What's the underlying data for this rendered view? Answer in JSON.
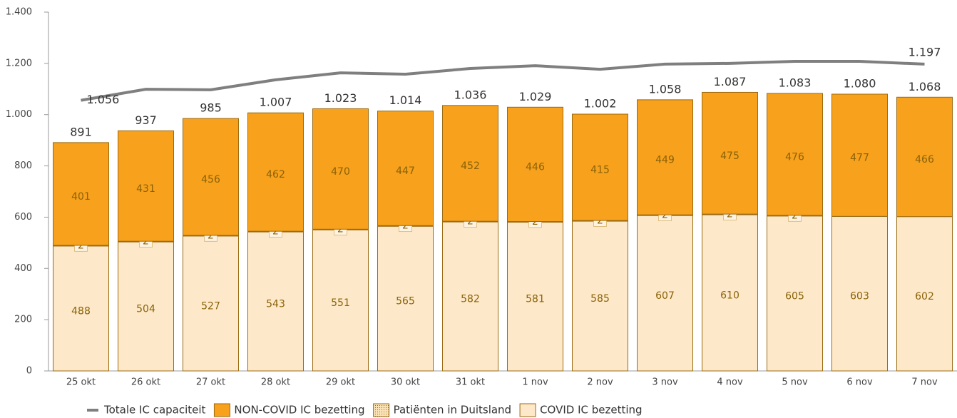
{
  "chart_data": {
    "type": "stacked-bar-line",
    "categories": [
      "25 okt",
      "26 okt",
      "27 okt",
      "28 okt",
      "29 okt",
      "30 okt",
      "31 okt",
      "1 nov",
      "2 nov",
      "3 nov",
      "4 nov",
      "5 nov",
      "6 nov",
      "7 nov"
    ],
    "series": [
      {
        "name": "Totale IC capaciteit",
        "kind": "line",
        "color": "#7f7f7f",
        "values": [
          1056,
          1099,
          1097,
          1136,
          1163,
          1158,
          1180,
          1191,
          1177,
          1197,
          1200,
          1208,
          1208,
          1197
        ],
        "value_labels": [
          "1.056",
          null,
          null,
          null,
          null,
          null,
          null,
          null,
          null,
          null,
          null,
          null,
          null,
          "1.197"
        ]
      },
      {
        "name": "NON-COVID IC bezetting",
        "kind": "bar",
        "color": "#f7a11c",
        "values": [
          401,
          431,
          456,
          462,
          470,
          447,
          452,
          446,
          415,
          449,
          475,
          476,
          477,
          466
        ]
      },
      {
        "name": "Patiënten in Duitsland",
        "kind": "bar",
        "color": "#fbe3b8",
        "values": [
          2,
          2,
          2,
          2,
          2,
          2,
          2,
          2,
          2,
          2,
          2,
          2,
          null,
          null
        ]
      },
      {
        "name": "COVID IC bezetting",
        "kind": "bar",
        "color": "#fde9c9",
        "values": [
          488,
          504,
          527,
          543,
          551,
          565,
          582,
          581,
          585,
          607,
          610,
          605,
          603,
          602
        ]
      }
    ],
    "totals": {
      "values": [
        891,
        937,
        985,
        1007,
        1023,
        1014,
        1036,
        1029,
        1002,
        1058,
        1087,
        1083,
        1080,
        1068
      ],
      "value_labels": [
        "891",
        "937",
        "985",
        "1.007",
        "1.023",
        "1.014",
        "1.036",
        "1.029",
        "1.002",
        "1.058",
        "1.087",
        "1.083",
        "1.080",
        "1.068"
      ]
    },
    "ylim": [
      0,
      1400
    ],
    "yticks": [
      0,
      200,
      400,
      600,
      800,
      {
        "value": 1000,
        "label": "1.000"
      },
      {
        "value": 1200,
        "label": "1.200"
      },
      {
        "value": 1400,
        "label": "1.400"
      }
    ],
    "grid": false,
    "legend": "bottom"
  }
}
